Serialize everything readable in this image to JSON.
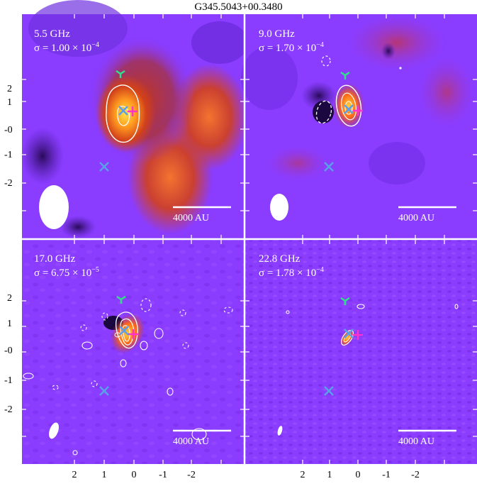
{
  "figure": {
    "title": "G345.5043+00.3480",
    "y_tick_labels": [
      "2",
      "1",
      "-0",
      "-1",
      "-2"
    ],
    "x_tick_labels": [
      "2",
      "1",
      "0",
      "-1",
      "-2"
    ],
    "colors": {
      "background_purple": "#8a3cff",
      "contour": "#ffffff",
      "marker_y": "#33e08a",
      "marker_x": "#5aa0e8",
      "marker_plus": "#ff33cc"
    },
    "marker_icons": [
      "tri-down-icon",
      "x-cross-icon",
      "plus-icon"
    ]
  },
  "panels": [
    {
      "freq": "5.5 GHz",
      "sigma": "σ = 1.00 × 10",
      "sigma_exp": "−4",
      "scale": "4000 AU"
    },
    {
      "freq": "9.0 GHz",
      "sigma": "σ = 1.70 × 10",
      "sigma_exp": "−4",
      "scale": "4000 AU"
    },
    {
      "freq": "17.0 GHz",
      "sigma": "σ = 6.75 × 10",
      "sigma_exp": "−5",
      "scale": "4000 AU"
    },
    {
      "freq": "22.8 GHz",
      "sigma": "σ = 1.78 × 10",
      "sigma_exp": "−4",
      "scale": "4000 AU"
    }
  ]
}
